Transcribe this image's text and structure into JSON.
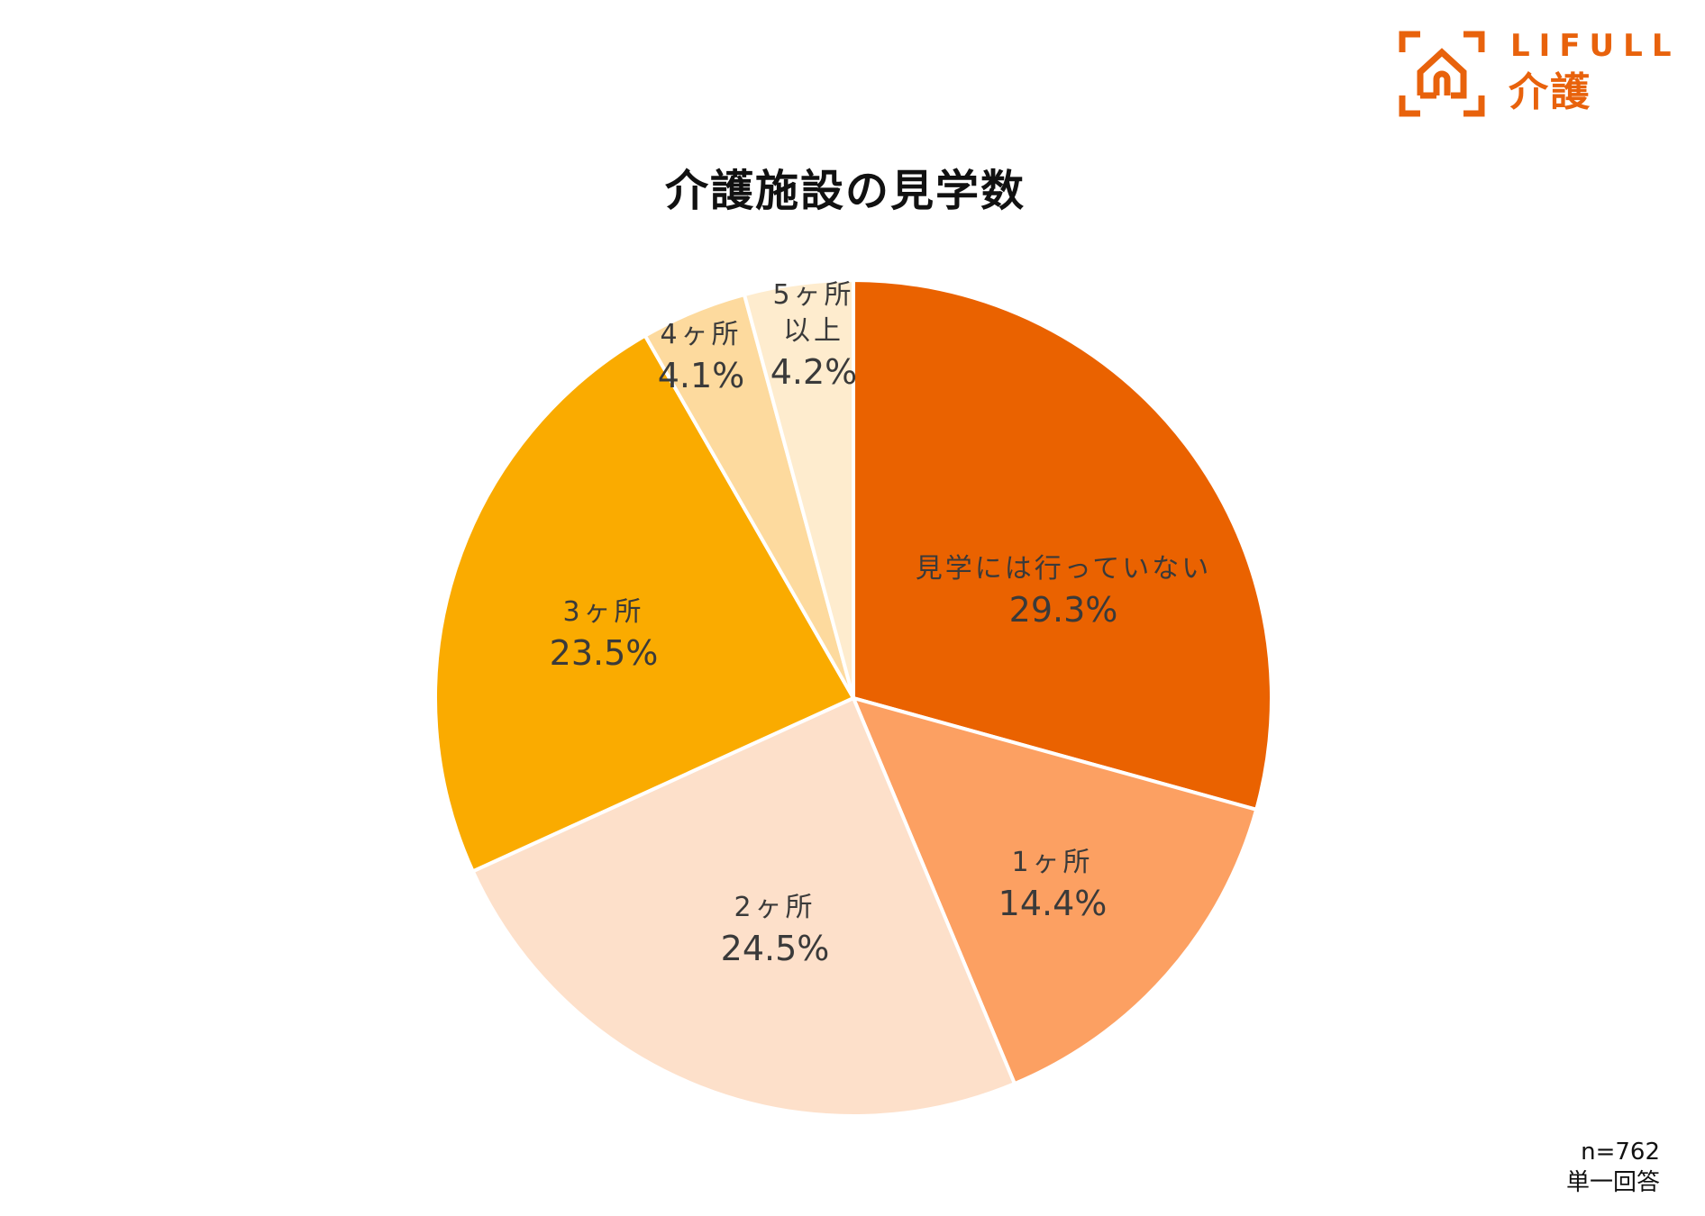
{
  "brand": {
    "logo_en": "LIFULL",
    "logo_ja": "介護",
    "color": "#E8620C"
  },
  "chart_data": {
    "type": "pie",
    "title": "介護施設の見学数",
    "start_angle_deg": 0,
    "direction": "clockwise",
    "slices": [
      {
        "label": "見学には行っていない",
        "value": 29.3,
        "display": "29.3%",
        "color": "#EA6200"
      },
      {
        "label": "1ヶ所",
        "value": 14.4,
        "display": "14.4%",
        "color": "#FCA062"
      },
      {
        "label": "2ヶ所",
        "value": 24.5,
        "display": "24.5%",
        "color": "#FDE0CA"
      },
      {
        "label": "3ヶ所",
        "value": 23.5,
        "display": "23.5%",
        "color": "#FAAB00"
      },
      {
        "label": "4ヶ所",
        "value": 4.1,
        "display": "4.1%",
        "color": "#FDDA9E"
      },
      {
        "label": "5ヶ所以上",
        "value": 4.2,
        "display": "4.2%",
        "color": "#FEECCE"
      }
    ],
    "labels": [
      {
        "cat": "見学には行っていない",
        "pct": "29.3%"
      },
      {
        "cat": "1ヶ所",
        "pct": "14.4%"
      },
      {
        "cat": "2ヶ所",
        "pct": "24.5%"
      },
      {
        "cat": "3ヶ所",
        "pct": "23.5%"
      },
      {
        "cat": "4ヶ所",
        "pct": "4.1%"
      },
      {
        "cat1": "5ヶ所",
        "cat2": "以上",
        "pct": "4.2%"
      }
    ],
    "legend": "none"
  },
  "notes": {
    "sample_size": "n=762",
    "answer_type": "単一回答"
  }
}
